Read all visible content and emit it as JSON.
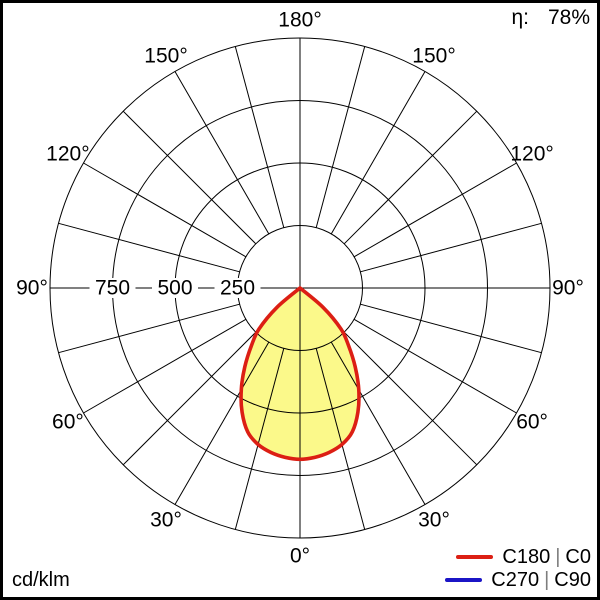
{
  "header": {
    "efficiency_symbol": "η:",
    "efficiency_value": "78%"
  },
  "footer": {
    "unit_label": "cd/klm"
  },
  "legend": {
    "separator": "|",
    "separator_color": "#7d7d7d",
    "items": [
      {
        "plane_a": "C180",
        "plane_b": "C0",
        "color": "#dc1f14"
      },
      {
        "plane_a": "C270",
        "plane_b": "C90",
        "color": "#1b15c6"
      }
    ]
  },
  "chart_data": {
    "type": "polar_intensity_distribution",
    "title": "Luminous intensity distribution curve",
    "unit": "cd/klm",
    "efficiency_percent": 78,
    "angle_axis": {
      "orientation": "0° at bottom (nadir), 180° at top, mirrored left/right",
      "grid_step_deg": 15,
      "label_step_deg": 30,
      "label_angles_deg": [
        0,
        30,
        60,
        90,
        120,
        150,
        180
      ],
      "labels": [
        "0°",
        "30°",
        "60°",
        "90°",
        "120°",
        "150°",
        "180°"
      ]
    },
    "radial_axis": {
      "rings": [
        250,
        500,
        750,
        1000
      ],
      "ring_labels": [
        "250",
        "500",
        "750"
      ],
      "max": 1000,
      "labels_on_left_axis": true
    },
    "grid": {
      "color": "#000000",
      "line_width": 1
    },
    "series": [
      {
        "name": "C180 | C0",
        "stroke": "#dc1f14",
        "stroke_width": 3.6,
        "fill": "#fbf98a",
        "symmetric": true,
        "plot_visible": true,
        "gamma_deg": [
          0,
          5,
          10,
          15,
          20,
          25,
          30,
          35,
          40,
          45,
          50,
          52.5
        ],
        "intensity_cd_per_klm": [
          685,
          680,
          668,
          648,
          612,
          548,
          470,
          385,
          303,
          232,
          120,
          0
        ]
      },
      {
        "name": "C270 | C90",
        "stroke": "#1b15c6",
        "plot_visible": false
      }
    ]
  }
}
